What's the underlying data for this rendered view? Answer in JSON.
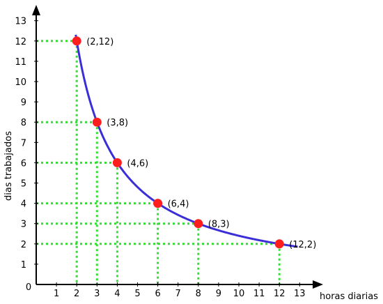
{
  "chart_data": {
    "type": "line",
    "title": "",
    "xlabel": "horas diarias",
    "ylabel": "dias trabajados",
    "xlim": [
      0,
      13
    ],
    "ylim": [
      0,
      13
    ],
    "x_ticks": [
      "1",
      "2",
      "3",
      "4",
      "5",
      "6",
      "7",
      "8",
      "9",
      "10",
      "11",
      "12",
      "13"
    ],
    "y_ticks": [
      "1",
      "2",
      "3",
      "4",
      "5",
      "6",
      "7",
      "8",
      "9",
      "10",
      "11",
      "12",
      "13"
    ],
    "origin_label": "0",
    "curve": {
      "relation": "x*y=24",
      "x_from": 1.95,
      "x_to": 12.9
    },
    "points": [
      {
        "x": 2,
        "y": 12,
        "label": "(2,12)"
      },
      {
        "x": 3,
        "y": 8,
        "label": "(3,8)"
      },
      {
        "x": 4,
        "y": 6,
        "label": "(4,6)"
      },
      {
        "x": 6,
        "y": 4,
        "label": "(6,4)"
      },
      {
        "x": 8,
        "y": 3,
        "label": "(8,3)"
      },
      {
        "x": 12,
        "y": 2,
        "label": "(12,2)"
      }
    ],
    "grid": false,
    "colors": {
      "curve": "#3a2fd6",
      "points": "#ff1e1e",
      "guides": "#33dd33",
      "axes": "#000000"
    }
  }
}
